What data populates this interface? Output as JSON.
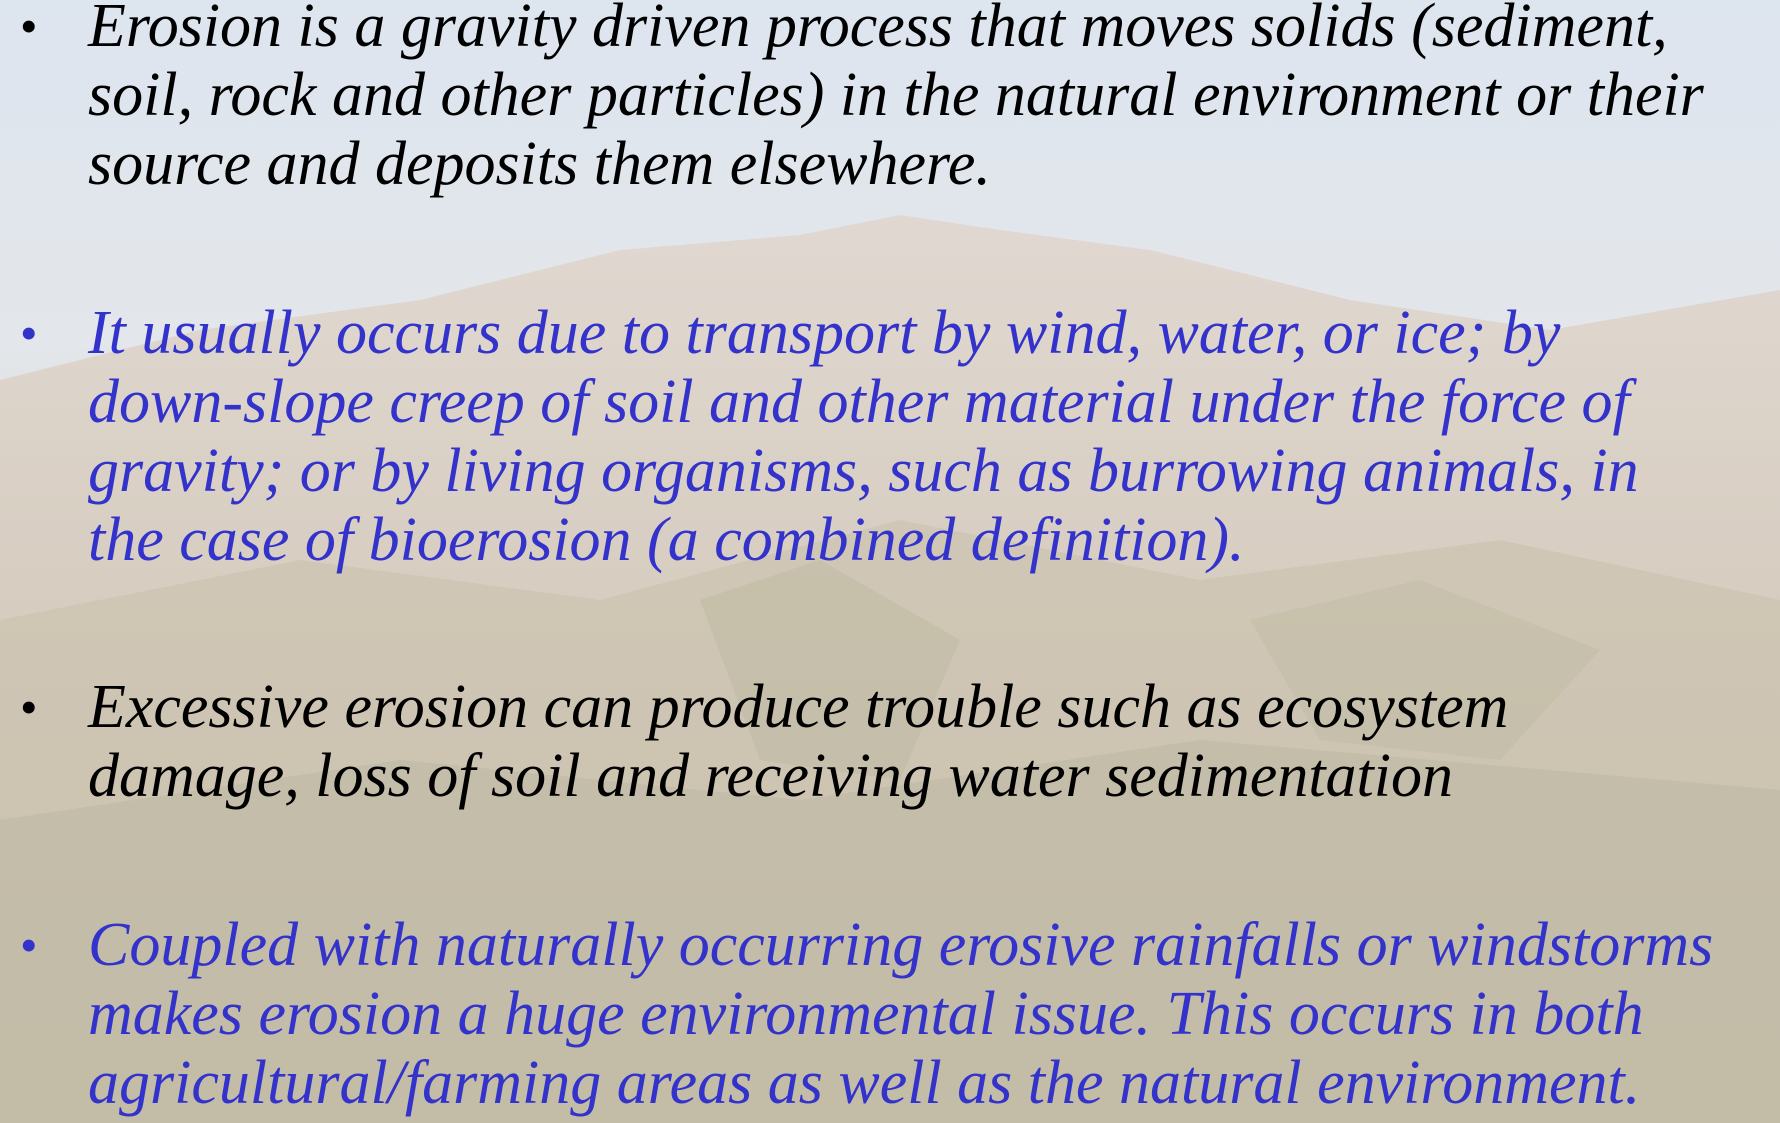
{
  "bullets": [
    {
      "color": "#000000",
      "lines": [
        "Erosion is a gravity driven process that moves solids (sediment,",
        "soil, rock and other particles) in the natural environment or their",
        "source and deposits them elsewhere."
      ]
    },
    {
      "color": "#3333cc",
      "lines": [
        "It usually occurs due to transport by wind, water, or ice; by",
        "down-slope creep of soil and other material under the force of",
        "gravity; or by living organisms, such as burrowing animals, in",
        "the case of bioerosion (a combined definition)."
      ]
    },
    {
      "color": "#000000",
      "lines": [
        "Excessive erosion can produce trouble such as ecosystem",
        "damage, loss of soil and receiving water sedimentation"
      ]
    },
    {
      "color": "#3333cc",
      "lines": [
        "Coupled with naturally occurring erosive rainfalls or windstorms",
        "makes erosion a huge environmental issue. This occurs in both",
        "agricultural/farming areas as well as the natural environment."
      ]
    }
  ]
}
